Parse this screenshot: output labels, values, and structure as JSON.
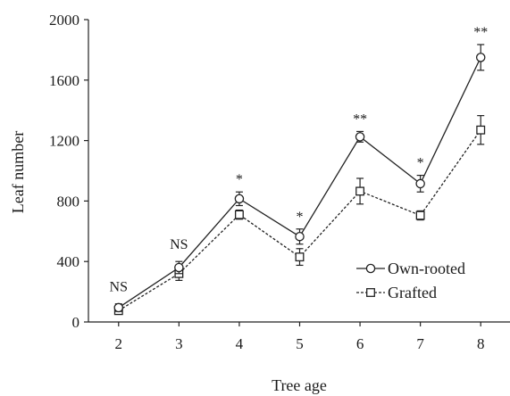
{
  "chart_data": {
    "type": "line",
    "title": "",
    "xlabel": "Tree age",
    "ylabel": "Leaf number",
    "x": [
      2,
      3,
      4,
      5,
      6,
      7,
      8
    ],
    "xticks": [
      "2",
      "3",
      "4",
      "5",
      "6",
      "7",
      "8"
    ],
    "ylim": [
      0,
      2000
    ],
    "yticks": [
      0,
      400,
      800,
      1200,
      1600,
      2000
    ],
    "grid": false,
    "legend_position": "bottom-right",
    "series": [
      {
        "name": "Own-rooted",
        "marker": "circle",
        "line_style": "solid",
        "values": [
          95,
          360,
          815,
          565,
          1225,
          915,
          1750
        ],
        "errors": [
          25,
          40,
          45,
          50,
          35,
          55,
          85
        ]
      },
      {
        "name": "Grafted",
        "marker": "square",
        "line_style": "dashed",
        "values": [
          75,
          320,
          710,
          430,
          865,
          705,
          1270
        ],
        "errors": [
          20,
          45,
          30,
          55,
          85,
          30,
          95
        ]
      }
    ],
    "significance": [
      "NS",
      "NS",
      "*",
      "*",
      "**",
      "*",
      "**"
    ]
  }
}
